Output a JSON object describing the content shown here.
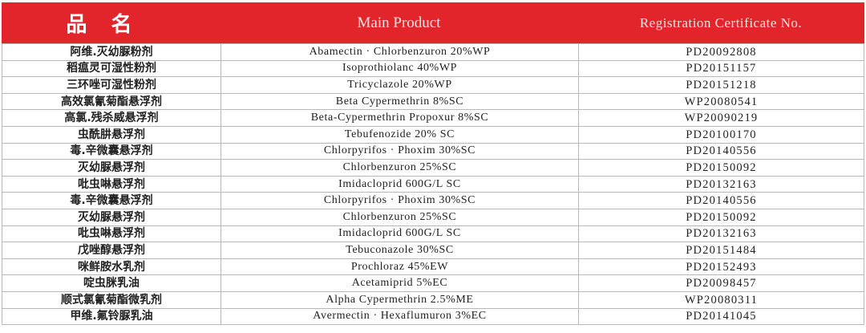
{
  "header": {
    "name": "品名",
    "product": "Main Product",
    "cert": "Registration Certificate No."
  },
  "colors": {
    "header_bg": "#e1252b"
  },
  "rows": [
    {
      "name": "阿维.灭幼脲粉剂",
      "product": "Abamectin · Chlorbenzuron 20%WP",
      "cert": "PD20092808"
    },
    {
      "name": "稻瘟灵可湿性粉剂",
      "product": "Isoprothiolanc 40%WP",
      "cert": "PD20151157"
    },
    {
      "name": "三环唑可湿性粉剂",
      "product": "Tricyclazole 20%WP",
      "cert": "PD20151218"
    },
    {
      "name": "高效氯氰菊酯悬浮剂",
      "product": "Beta Cypermethrin 8%SC",
      "cert": "WP20080541"
    },
    {
      "name": "高氯.残杀威悬浮剂",
      "product": "Beta-Cypermethrin Propoxur 8%SC",
      "cert": "WP20090219"
    },
    {
      "name": "虫酰肼悬浮剂",
      "product": "Tebufenozide 20% SC",
      "cert": "PD20100170"
    },
    {
      "name": "毒.辛微囊悬浮剂",
      "product": "Chlorpyrifos · Phoxim 30%SC",
      "cert": "PD20140556"
    },
    {
      "name": "灭幼脲悬浮剂",
      "product": "Chlorbenzuron 25%SC",
      "cert": "PD20150092"
    },
    {
      "name": "吡虫啉悬浮剂",
      "product": "Imidacloprid 600G/L SC",
      "cert": "PD20132163"
    },
    {
      "name": "毒.辛微囊悬浮剂",
      "product": "Chlorpyrifos · Phoxim 30%SC",
      "cert": "PD20140556"
    },
    {
      "name": "灭幼脲悬浮剂",
      "product": "Chlorbenzuron 25%SC",
      "cert": "PD20150092"
    },
    {
      "name": "吡虫啉悬浮剂",
      "product": "Imidacloprid 600G/L SC",
      "cert": "PD20132163"
    },
    {
      "name": "戊唑醇悬浮剂",
      "product": "Tebuconazole 30%SC",
      "cert": "PD20151484"
    },
    {
      "name": "咪鲜胺水乳剂",
      "product": "Prochloraz 45%EW",
      "cert": "PD20152493"
    },
    {
      "name": "啶虫脒乳油",
      "product": "Acetamiprid 5%EC",
      "cert": "PD20098457"
    },
    {
      "name": "顺式氯氰菊酯微乳剂",
      "product": "Alpha Cypermethrin 2.5%ME",
      "cert": "WP20080311"
    },
    {
      "name": "甲维.氟铃脲乳油",
      "product": "Avermectin · Hexaflumuron 3%EC",
      "cert": "PD20141045"
    }
  ]
}
